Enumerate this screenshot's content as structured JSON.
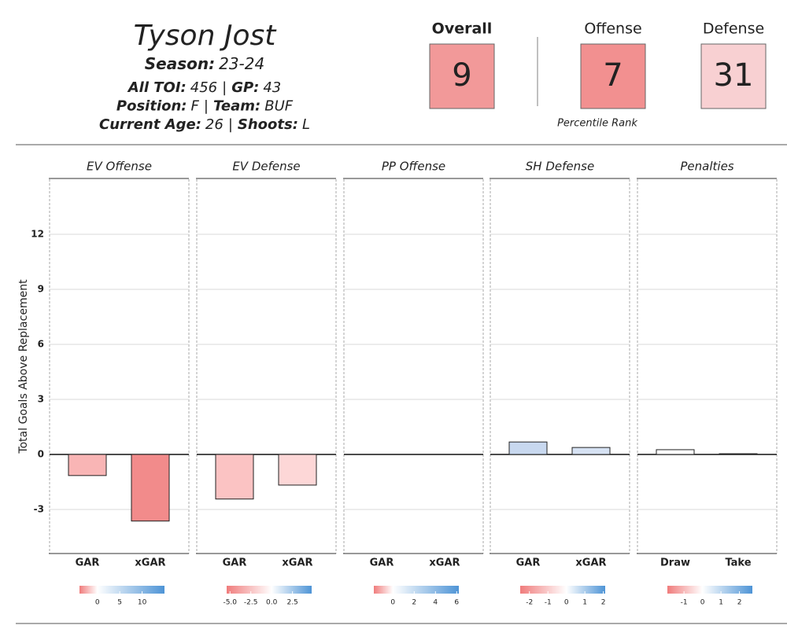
{
  "header": {
    "name": "Tyson Jost",
    "season": {
      "label": "Season:",
      "value": "23-24"
    },
    "separator": "|",
    "lines": [
      [
        {
          "label": "All TOI:",
          "value": "456"
        },
        {
          "label": "GP:",
          "value": "43"
        }
      ],
      [
        {
          "label": "Position:",
          "value": "F"
        },
        {
          "label": "Team:",
          "value": "BUF"
        }
      ],
      [
        {
          "label": "Current Age:",
          "value": "26"
        },
        {
          "label": "Shoots:",
          "value": "L"
        }
      ]
    ]
  },
  "ranks": {
    "note": "Percentile Rank",
    "items": [
      {
        "label": "Overall",
        "value": 9,
        "color": "#f29999"
      },
      {
        "label": "Offense",
        "value": 7,
        "color": "#f29090"
      },
      {
        "label": "Defense",
        "value": 31,
        "color": "#f8d0d2"
      }
    ]
  },
  "chart_data": [
    {
      "type": "bar",
      "title": "EV Offense",
      "y_label": "Total Goals Above Replacement",
      "ylim": [
        -5.4,
        15
      ],
      "yticks": [
        -3,
        0,
        3,
        6,
        9,
        12
      ],
      "categories": [
        "GAR",
        "xGAR"
      ],
      "values": [
        -1.15,
        -3.63
      ],
      "colors": [
        "#f9b5b5",
        "#f28b8b"
      ],
      "colorbar": {
        "lim": [
          -4,
          15
        ],
        "ticks": [
          0,
          5,
          10
        ]
      }
    },
    {
      "type": "bar",
      "title": "EV Defense",
      "ylim": [
        -5.4,
        15
      ],
      "yticks": [
        -3,
        0,
        3,
        6,
        9,
        12
      ],
      "categories": [
        "GAR",
        "xGAR"
      ],
      "values": [
        -2.43,
        -1.67
      ],
      "colors": [
        "#fbc3c3",
        "#fdd7d7"
      ],
      "colorbar": {
        "lim": [
          -5.4,
          4.8
        ],
        "ticks": [
          {
            "value": -5,
            "label": "-5.0"
          },
          -2.5,
          {
            "value": 0,
            "label": "0.0"
          },
          2.5
        ]
      }
    },
    {
      "type": "bar",
      "title": "PP Offense",
      "ylim": [
        -5.4,
        15
      ],
      "yticks": [
        -3,
        0,
        3,
        6,
        9,
        12
      ],
      "categories": [
        "GAR",
        "xGAR"
      ],
      "values": [
        0,
        0
      ],
      "colors": [
        "#ffffff",
        "#ffffff"
      ],
      "colorbar": {
        "lim": [
          -1.8,
          6.2
        ],
        "ticks": [
          0,
          2,
          4,
          6
        ]
      }
    },
    {
      "type": "bar",
      "title": "SH Defense",
      "ylim": [
        -5.4,
        15
      ],
      "yticks": [
        -3,
        0,
        3,
        6,
        9,
        12
      ],
      "categories": [
        "GAR",
        "xGAR"
      ],
      "values": [
        0.68,
        0.38
      ],
      "colors": [
        "#c8d8ef",
        "#d6e2f3"
      ],
      "colorbar": {
        "lim": [
          -2.5,
          2.1
        ],
        "ticks": [
          -2,
          -1,
          0,
          1,
          2
        ]
      }
    },
    {
      "type": "bar",
      "title": "Penalties",
      "ylim": [
        -5.4,
        15
      ],
      "yticks": [
        -3,
        0,
        3,
        6,
        9,
        12
      ],
      "categories": [
        "Draw",
        "Take"
      ],
      "values": [
        0.26,
        0.04
      ],
      "colors": [
        "#fbfbfb",
        "#f2f2f2"
      ],
      "colorbar": {
        "lim": [
          -1.9,
          2.7
        ],
        "ticks": [
          -1,
          0,
          1,
          2
        ]
      }
    }
  ]
}
